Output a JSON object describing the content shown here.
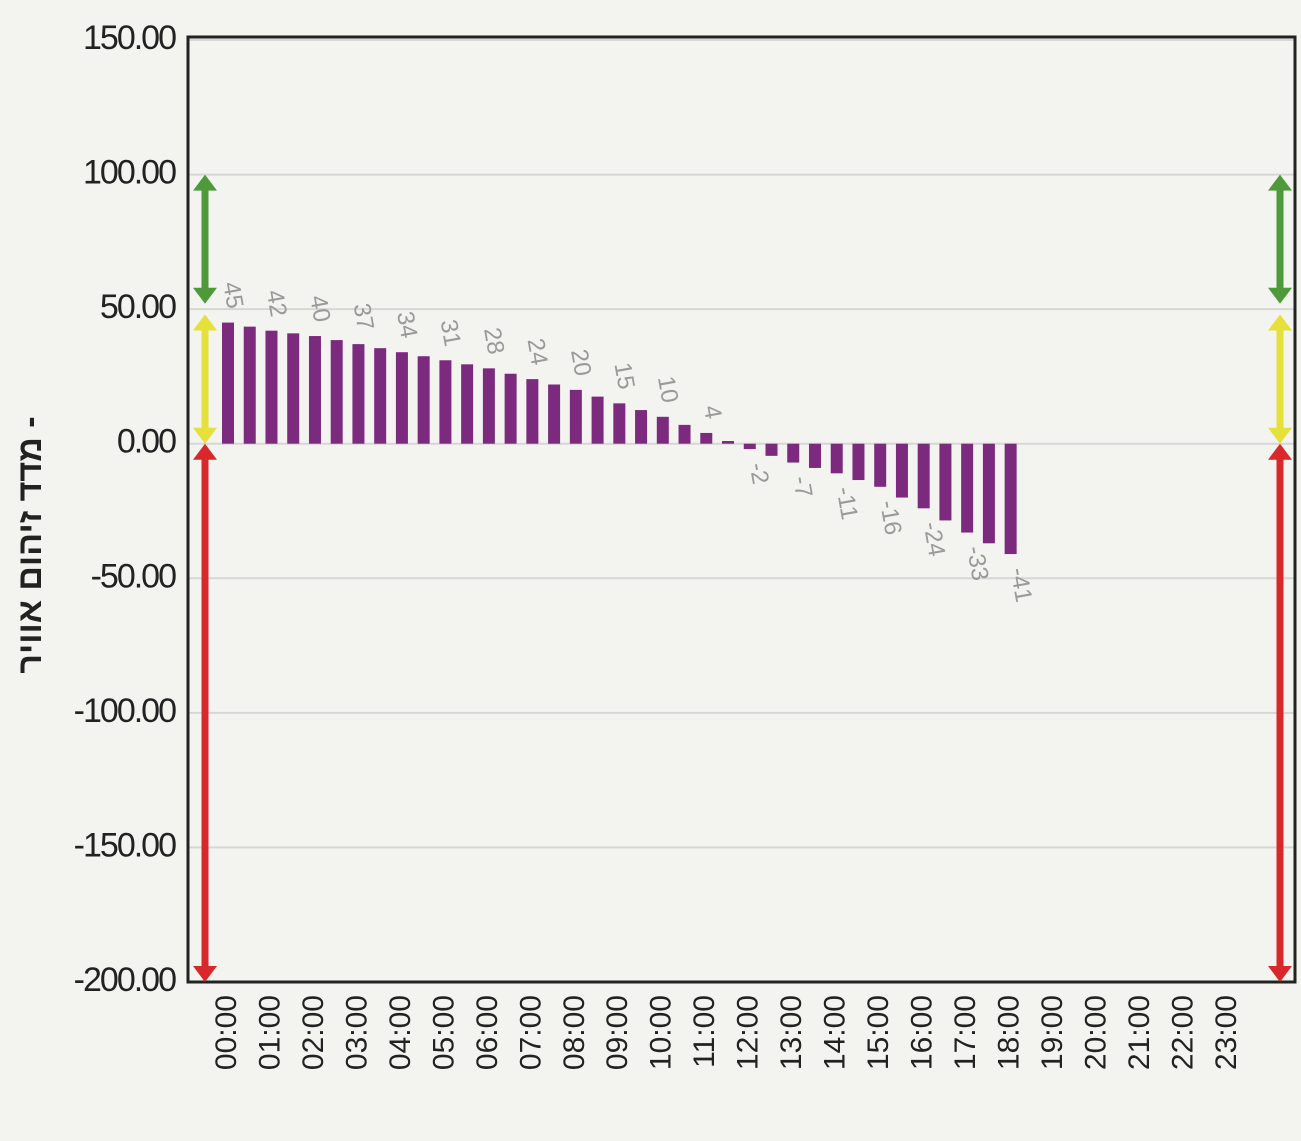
{
  "chart_data": {
    "type": "bar",
    "y_label": "מדד זיהום אוויר -",
    "categories": [
      "00:00",
      null,
      "01:00",
      null,
      "02:00",
      null,
      "03:00",
      null,
      "04:00",
      null,
      "05:00",
      null,
      "06:00",
      null,
      "07:00",
      null,
      "08:00",
      null,
      "09:00",
      null,
      "10:00",
      null,
      "11:00",
      null,
      "12:00",
      null,
      "13:00",
      null,
      "14:00",
      null,
      "15:00",
      null,
      "16:00",
      null,
      "17:00",
      null,
      "18:00",
      null,
      "19:00",
      null,
      "20:00",
      null,
      "21:00",
      null,
      "22:00",
      null,
      "23:00",
      null
    ],
    "values": [
      45,
      43.5,
      42,
      41,
      40,
      38.5,
      37,
      35.5,
      34,
      32.5,
      31,
      29.5,
      28,
      26,
      24,
      22,
      20,
      17.5,
      15,
      12.5,
      10,
      7,
      4,
      1,
      -2,
      -4.5,
      -7,
      -9,
      -11,
      -13.5,
      -16,
      -20,
      -24,
      -28.5,
      -33,
      -37,
      -41,
      null,
      null,
      null,
      null,
      null,
      null,
      null,
      null,
      null,
      null,
      null
    ],
    "color": "#7b2a7e",
    "ylim": [
      -200,
      150
    ],
    "yticks": [
      {
        "value": -200,
        "label": "-200.00"
      },
      {
        "value": -150,
        "label": "-150.00"
      },
      {
        "value": -100,
        "label": "-100.00"
      },
      {
        "value": -50,
        "label": "-50.00"
      },
      {
        "value": 0,
        "label": "0.00"
      },
      {
        "value": 50,
        "label": "50.00"
      },
      {
        "value": 100,
        "label": "100.00"
      },
      {
        "value": 150,
        "label": "150.00"
      }
    ],
    "grid": true,
    "bands": [
      {
        "from": 52,
        "to": 100,
        "color": "#4e9a3a"
      },
      {
        "from": 0,
        "to": 48,
        "color": "#e6e03a"
      },
      {
        "from": -200,
        "to": 0,
        "color": "#d8282c"
      }
    ]
  }
}
